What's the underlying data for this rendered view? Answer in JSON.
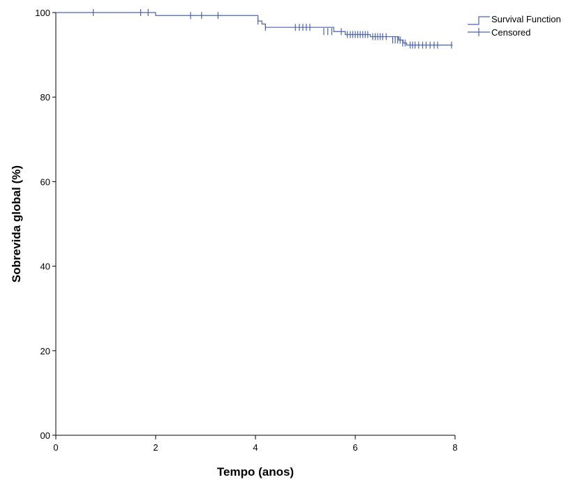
{
  "chart_data": {
    "type": "line",
    "title": "",
    "xlabel": "Tempo (anos)",
    "ylabel": "Sobrevida global (%)",
    "xlim": [
      0,
      8
    ],
    "ylim": [
      0,
      100
    ],
    "x_ticks": [
      "0",
      "2",
      "4",
      "6",
      "8"
    ],
    "y_ticks": [
      "00",
      "20",
      "40",
      "60",
      "80",
      "100"
    ],
    "grid": false,
    "legend_position": "top-right",
    "line_color": "#4a63b0",
    "series": [
      {
        "name": "Survival Function",
        "style": "step",
        "x": [
          0,
          1.95,
          2.0,
          4.0,
          4.05,
          4.13,
          4.2,
          5.08,
          5.57,
          5.8,
          6.3,
          6.7,
          6.87,
          6.96,
          7.03,
          7.08,
          7.95
        ],
        "y": [
          100,
          100,
          99.3,
          99.3,
          98.0,
          97.3,
          96.5,
          96.5,
          95.5,
          94.8,
          94.3,
          94.3,
          93.5,
          92.8,
          92.3,
          92.3,
          92.3
        ]
      },
      {
        "name": "Censored",
        "style": "marker-plus",
        "x": [
          0.75,
          1.7,
          1.85,
          2.7,
          2.92,
          3.25,
          4.05,
          4.2,
          4.8,
          4.88,
          4.95,
          5.02,
          5.09,
          5.37,
          5.45,
          5.53,
          5.72,
          5.84,
          5.9,
          5.95,
          6.0,
          6.05,
          6.1,
          6.15,
          6.2,
          6.25,
          6.35,
          6.4,
          6.45,
          6.5,
          6.55,
          6.62,
          6.75,
          6.8,
          6.85,
          6.9,
          6.95,
          7.0,
          7.1,
          7.15,
          7.2,
          7.27,
          7.35,
          7.42,
          7.5,
          7.58,
          7.65,
          7.93
        ],
        "y": [
          100,
          100,
          100,
          99.3,
          99.3,
          99.3,
          98.0,
          96.5,
          96.5,
          96.5,
          96.5,
          96.5,
          96.5,
          95.5,
          95.5,
          95.5,
          95.5,
          94.8,
          94.8,
          94.8,
          94.8,
          94.8,
          94.8,
          94.8,
          94.8,
          94.8,
          94.3,
          94.3,
          94.3,
          94.3,
          94.3,
          94.3,
          93.5,
          93.5,
          93.5,
          93.5,
          92.8,
          92.8,
          92.3,
          92.3,
          92.3,
          92.3,
          92.3,
          92.3,
          92.3,
          92.3,
          92.3,
          92.3
        ]
      }
    ]
  }
}
